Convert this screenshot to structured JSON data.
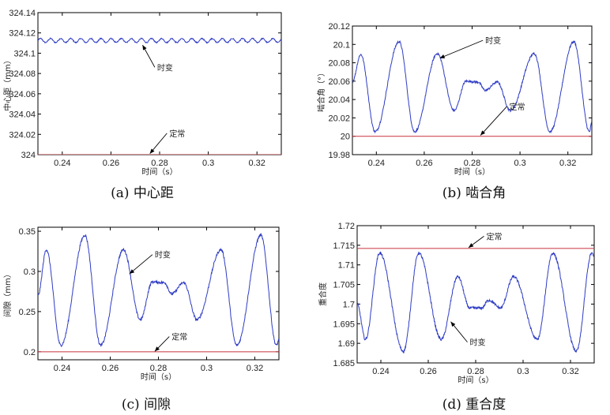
{
  "colors": {
    "time_varying": "#2e3cc4",
    "constant": "#c8323c",
    "frame": "#000000"
  },
  "chart_data": [
    {
      "id": "a",
      "type": "line",
      "caption": "(a)  中心距",
      "xlabel": "时间（s）",
      "ylabel": "中心距（mm）",
      "xlim": [
        0.23,
        0.33
      ],
      "ylim": [
        324.0,
        324.14
      ],
      "xticks": [
        "0.24",
        "0.26",
        "0.28",
        "0.3",
        "0.32"
      ],
      "yticks": [
        "324",
        "324.02",
        "324.04",
        "324.06",
        "324.08",
        "324.1",
        "324.12",
        "324.14"
      ],
      "series": [
        {
          "kind": "varying",
          "mean": 324.1125,
          "amplitude": 0.002,
          "ripple_period": 0.00415,
          "noise": 0.0005,
          "label": "时变",
          "label_at": [
            0.279,
            324.083
          ],
          "arrow_to": [
            0.273,
            324.108
          ]
        },
        {
          "kind": "constant",
          "value": 324.0,
          "label": "定常",
          "label_at": [
            0.284,
            324.018
          ],
          "arrow_to": [
            0.276,
            324.001
          ]
        }
      ]
    },
    {
      "id": "b",
      "type": "line",
      "caption": "(b)  啮合角",
      "xlabel": "时间（s）",
      "ylabel": "啮合角（°）",
      "xlim": [
        0.23,
        0.33
      ],
      "ylim": [
        19.98,
        20.12
      ],
      "xticks": [
        "0.24",
        "0.26",
        "0.28",
        "0.3",
        "0.32"
      ],
      "yticks": [
        "19.98",
        "20",
        "20.02",
        "20.04",
        "20.06",
        "20.08",
        "20.1",
        "20.12"
      ],
      "series": [
        {
          "kind": "varying",
          "keypoints": [
            [
              0.23,
              20.06
            ],
            [
              0.2335,
              20.089
            ],
            [
              0.2395,
              20.005
            ],
            [
              0.2495,
              20.103
            ],
            [
              0.256,
              20.005
            ],
            [
              0.2655,
              20.09
            ],
            [
              0.2725,
              20.028
            ],
            [
              0.2775,
              20.06
            ],
            [
              0.2825,
              20.059
            ],
            [
              0.2855,
              20.05
            ],
            [
              0.2905,
              20.059
            ],
            [
              0.296,
              20.028
            ],
            [
              0.306,
              20.09
            ],
            [
              0.3125,
              20.005
            ],
            [
              0.3225,
              20.103
            ],
            [
              0.329,
              20.005
            ],
            [
              0.33,
              20.015
            ]
          ],
          "noise": 0.0012,
          "label": "时变",
          "label_at": [
            0.2855,
            20.101
          ],
          "arrow_to": [
            0.2665,
            20.085
          ]
        },
        {
          "kind": "constant",
          "value": 20.0,
          "label": "定常",
          "label_at": [
            0.2955,
            20.029
          ],
          "arrow_to": [
            0.2835,
            20.001
          ]
        }
      ]
    },
    {
      "id": "c",
      "type": "line",
      "caption": "(c)  间隙",
      "xlabel": "时间（s）",
      "ylabel": "间隙（mm）",
      "xlim": [
        0.23,
        0.33
      ],
      "ylim": [
        0.19,
        0.355
      ],
      "xticks": [
        "0.24",
        "0.26",
        "0.28",
        "0.3",
        "0.32"
      ],
      "yticks": [
        "0.2",
        "0.25",
        "0.3",
        "0.35"
      ],
      "series": [
        {
          "kind": "varying",
          "keypoints": [
            [
              0.23,
              0.27
            ],
            [
              0.2335,
              0.327
            ],
            [
              0.2395,
              0.208
            ],
            [
              0.2495,
              0.345
            ],
            [
              0.256,
              0.208
            ],
            [
              0.2655,
              0.327
            ],
            [
              0.2725,
              0.24
            ],
            [
              0.2775,
              0.287
            ],
            [
              0.2825,
              0.286
            ],
            [
              0.2855,
              0.272
            ],
            [
              0.2905,
              0.286
            ],
            [
              0.296,
              0.24
            ],
            [
              0.306,
              0.327
            ],
            [
              0.3125,
              0.208
            ],
            [
              0.3225,
              0.345
            ],
            [
              0.329,
              0.208
            ],
            [
              0.33,
              0.215
            ]
          ],
          "noise": 0.0016,
          "label": "时变",
          "label_at": [
            0.2785,
            0.317
          ],
          "arrow_to": [
            0.268,
            0.297
          ]
        },
        {
          "kind": "constant",
          "value": 0.2,
          "label": "定常",
          "label_at": [
            0.2855,
            0.215
          ],
          "arrow_to": [
            0.2785,
            0.2005
          ]
        }
      ]
    },
    {
      "id": "d",
      "type": "line",
      "caption": "(d)  重合度",
      "xlabel": "时间（s）",
      "ylabel": "重合度",
      "xlim": [
        0.23,
        0.33
      ],
      "ylim": [
        1.685,
        1.72
      ],
      "xticks": [
        "0.24",
        "0.26",
        "0.28",
        "0.3",
        "0.32"
      ],
      "yticks": [
        "1.685",
        "1.69",
        "1.695",
        "1.7",
        "1.705",
        "1.71",
        "1.715",
        "1.72"
      ],
      "series": [
        {
          "kind": "varying",
          "keypoints": [
            [
              0.23,
              1.7
            ],
            [
              0.2335,
              1.691
            ],
            [
              0.2395,
              1.713
            ],
            [
              0.2495,
              1.688
            ],
            [
              0.256,
              1.713
            ],
            [
              0.2655,
              1.691
            ],
            [
              0.2725,
              1.707
            ],
            [
              0.2775,
              1.699
            ],
            [
              0.2825,
              1.699
            ],
            [
              0.2855,
              1.701
            ],
            [
              0.2905,
              1.699
            ],
            [
              0.296,
              1.707
            ],
            [
              0.306,
              1.691
            ],
            [
              0.3125,
              1.713
            ],
            [
              0.3225,
              1.688
            ],
            [
              0.329,
              1.713
            ],
            [
              0.33,
              1.712
            ]
          ],
          "noise": 0.00035,
          "label": "时变",
          "label_at": [
            0.2775,
            1.6895
          ],
          "arrow_to": [
            0.2695,
            1.6955
          ]
        },
        {
          "kind": "constant",
          "value": 1.7142,
          "label": "定常",
          "label_at": [
            0.2845,
            1.7165
          ],
          "arrow_to": [
            0.277,
            1.7144
          ]
        }
      ]
    }
  ]
}
